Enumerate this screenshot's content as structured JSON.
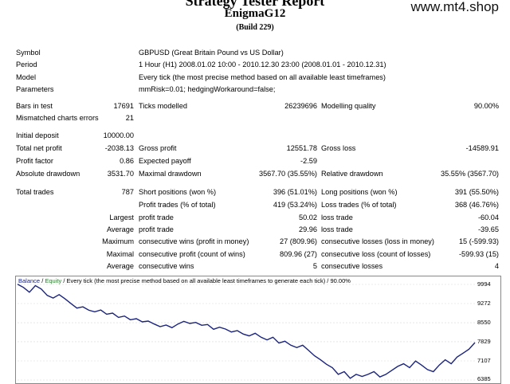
{
  "header": {
    "title": "Strategy Tester Report",
    "subtitle": "EnigmaG12",
    "build": "(Build 229)",
    "watermark": "www.mt4.shop"
  },
  "info": {
    "symbol_label": "Symbol",
    "symbol_value": "GBPUSD (Great Britain Pound vs US Dollar)",
    "period_label": "Period",
    "period_value": "1 Hour (H1) 2008.01.02 10:00 - 2010.12.30 23:00 (2008.01.01 - 2010.12.31)",
    "model_label": "Model",
    "model_value": "Every tick (the most precise method based on all available least timeframes)",
    "parameters_label": "Parameters",
    "parameters_value": "mmRisk=0.01; hedgingWorkaround=false;"
  },
  "stats": {
    "bars_label": "Bars in test",
    "bars_value": "17691",
    "ticks_label": "Ticks modelled",
    "ticks_value": "26239696",
    "quality_label": "Modelling quality",
    "quality_value": "90.00%",
    "mismatch_label": "Mismatched charts errors",
    "mismatch_value": "21",
    "deposit_label": "Initial deposit",
    "deposit_value": "10000.00",
    "netprofit_label": "Total net profit",
    "netprofit_value": "-2038.13",
    "grossprofit_label": "Gross profit",
    "grossprofit_value": "12551.78",
    "grossloss_label": "Gross loss",
    "grossloss_value": "-14589.91",
    "pf_label": "Profit factor",
    "pf_value": "0.86",
    "payoff_label": "Expected payoff",
    "payoff_value": "-2.59",
    "absdd_label": "Absolute drawdown",
    "absdd_value": "3531.70",
    "maxdd_label": "Maximal drawdown",
    "maxdd_value": "3567.70 (35.55%)",
    "reldd_label": "Relative drawdown",
    "reldd_value": "35.55% (3567.70)",
    "trades_label": "Total trades",
    "trades_value": "787",
    "short_label": "Short positions (won %)",
    "short_value": "396 (51.01%)",
    "long_label": "Long positions (won %)",
    "long_value": "391 (55.50%)",
    "ptrades_label": "Profit trades (% of total)",
    "ptrades_value": "419 (53.24%)",
    "ltrades_label": "Loss trades (% of total)",
    "ltrades_value": "368 (46.76%)",
    "largest_label": "Largest",
    "largest_pt_label": "profit trade",
    "largest_pt_value": "50.02",
    "largest_lt_label": "loss trade",
    "largest_lt_value": "-60.04",
    "average_label": "Average",
    "average_pt_label": "profit trade",
    "average_pt_value": "29.96",
    "average_lt_label": "loss trade",
    "average_lt_value": "-39.65",
    "maximum_label": "Maximum",
    "maxwins_label": "consecutive wins (profit in money)",
    "maxwins_value": "27 (809.96)",
    "maxloss_label": "consecutive losses (loss in money)",
    "maxloss_value": "15 (-599.93)",
    "maximal_label": "Maximal",
    "mprofit_label": "consecutive profit (count of wins)",
    "mprofit_value": "809.96 (27)",
    "mloss_label": "consecutive loss (count of losses)",
    "mloss_value": "-599.93 (15)",
    "average2_label": "Average",
    "avgwins_label": "consecutive wins",
    "avgwins_value": "5",
    "avglosses_label": "consecutive losses",
    "avglosses_value": "4"
  },
  "chart_data": {
    "type": "line",
    "legend_balance": "Balance",
    "legend_sep": " / ",
    "legend_equity": "Equity",
    "legend_rest": " / Every tick (the most precise method based on all available least timeframes to generate each tick) / 90.00%",
    "yticks": [
      "9994",
      "9272",
      "8550",
      "7829",
      "7107",
      "6385"
    ],
    "ylim": [
      6385,
      9994
    ],
    "color": "#1a237e",
    "series": [
      {
        "values": [
          10000,
          9880,
          9700,
          9950,
          9820,
          9580,
          9480,
          9610,
          9450,
          9270,
          9100,
          9150,
          9020,
          8960,
          9030,
          8870,
          8910,
          8750,
          8800,
          8660,
          8700,
          8580,
          8610,
          8500,
          8400,
          8460,
          8360,
          8500,
          8600,
          8520,
          8560,
          8450,
          8480,
          8300,
          8380,
          8310,
          8200,
          8250,
          8120,
          8050,
          8150,
          8000,
          7900,
          8000,
          7780,
          7850,
          7700,
          7610,
          7700,
          7500,
          7300,
          7150,
          6980,
          6850,
          6600,
          6700,
          6450,
          6600,
          6520,
          6600,
          6700,
          6500,
          6600,
          6750,
          6900,
          7000,
          6850,
          7100,
          6950,
          6780,
          6700,
          6950,
          7150,
          7000,
          7250,
          7400,
          7550,
          7800
        ]
      }
    ]
  }
}
